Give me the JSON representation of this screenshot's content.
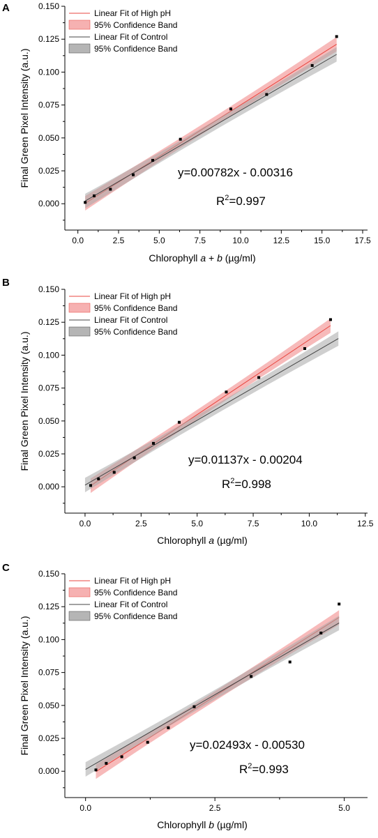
{
  "chart_data": [
    {
      "type": "scatter",
      "panel_label": "A",
      "xlabel": {
        "prefix": "Chlorophyll ",
        "italic1": "a",
        "mid": " + ",
        "italic2": "b",
        "suffix": " (µg/ml)"
      },
      "ylabel": "Final Green Pixel Intensity (a.u.)",
      "xlim": [
        -0.8,
        17.8
      ],
      "ylim": [
        -0.02,
        0.15
      ],
      "xticks": [
        "0.0",
        "2.5",
        "5.0",
        "7.5",
        "10.0",
        "12.5",
        "15.0",
        "17.5"
      ],
      "xtick_values": [
        0,
        2.5,
        5,
        7.5,
        10,
        12.5,
        15,
        17.5
      ],
      "yticks": [
        "0.000",
        "0.025",
        "0.050",
        "0.075",
        "0.100",
        "0.125",
        "0.150"
      ],
      "ytick_values": [
        0,
        0.025,
        0.05,
        0.075,
        0.1,
        0.125,
        0.15
      ],
      "points": [
        [
          0.45,
          0.001
        ],
        [
          1.0,
          0.006
        ],
        [
          2.0,
          0.011
        ],
        [
          3.4,
          0.022
        ],
        [
          4.6,
          0.033
        ],
        [
          6.3,
          0.049
        ],
        [
          9.4,
          0.072
        ],
        [
          11.6,
          0.083
        ],
        [
          14.4,
          0.105
        ],
        [
          15.9,
          0.127
        ]
      ],
      "series": [
        {
          "name": "Linear Fit of High pH",
          "slope": 0.00782,
          "intercept": -0.00316,
          "x_range": [
            0.45,
            15.9
          ],
          "color": "#e8463f",
          "band_color": "#f4a3a3"
        },
        {
          "name": "Linear Fit of Control",
          "slope": 0.00721,
          "intercept": -0.00118,
          "x_range": [
            0.45,
            15.9
          ],
          "color": "#444444",
          "band_color": "#a8a8a8"
        }
      ],
      "legend": [
        "Linear Fit of High pH",
        "95% Confidence Band",
        "Linear Fit of Control",
        "95% Confidence Band"
      ],
      "legend_position": "top-left",
      "equation": "y=0.00782x - 0.00316",
      "r2_prefix": "R",
      "r2_sup": "2",
      "r2_suffix": "=0.997",
      "grid": false
    },
    {
      "type": "scatter",
      "panel_label": "B",
      "xlabel": {
        "prefix": "Chlorophyll ",
        "italic1": "a",
        "mid": "",
        "italic2": "",
        "suffix": " (µg/ml)"
      },
      "ylabel": "Final Green Pixel Intensity (a.u.)",
      "xlim": [
        -0.9,
        12.6
      ],
      "ylim": [
        -0.02,
        0.15
      ],
      "xticks": [
        "0.0",
        "2.5",
        "5.0",
        "7.5",
        "10.0",
        "12.5"
      ],
      "xtick_values": [
        0,
        2.5,
        5,
        7.5,
        10,
        12.5
      ],
      "yticks": [
        "0.000",
        "0.025",
        "0.050",
        "0.075",
        "0.100",
        "0.125",
        "0.150"
      ],
      "ytick_values": [
        0,
        0.025,
        0.05,
        0.075,
        0.1,
        0.125,
        0.15
      ],
      "points": [
        [
          0.25,
          0.001
        ],
        [
          0.6,
          0.006
        ],
        [
          1.3,
          0.011
        ],
        [
          2.2,
          0.022
        ],
        [
          3.05,
          0.033
        ],
        [
          4.2,
          0.049
        ],
        [
          6.3,
          0.072
        ],
        [
          7.75,
          0.083
        ],
        [
          9.8,
          0.105
        ],
        [
          10.95,
          0.127
        ]
      ],
      "series": [
        {
          "name": "Linear Fit of High pH",
          "slope": 0.01137,
          "intercept": -0.00204,
          "x_range": [
            0.25,
            10.95
          ],
          "color": "#e8463f",
          "band_color": "#f4a3a3"
        },
        {
          "name": "Linear Fit of Control",
          "slope": 0.00985,
          "intercept": 0.0013,
          "x_range": [
            0.0,
            11.3
          ],
          "color": "#444444",
          "band_color": "#a8a8a8"
        }
      ],
      "legend": [
        "Linear Fit of High pH",
        "95% Confidence Band",
        "Linear Fit of Control",
        "95% Confidence Band"
      ],
      "legend_position": "top-left",
      "equation": "y=0.01137x - 0.00204",
      "r2_prefix": "R",
      "r2_sup": "2",
      "r2_suffix": "=0.998",
      "grid": false
    },
    {
      "type": "scatter",
      "panel_label": "C",
      "xlabel": {
        "prefix": "Chlorophyll ",
        "italic1": "b",
        "mid": "",
        "italic2": "",
        "suffix": " (µg/ml)"
      },
      "ylabel": "Final Green Pixel Intensity (a.u.)",
      "xlim": [
        -0.4,
        5.45
      ],
      "ylim": [
        -0.02,
        0.15
      ],
      "xticks": [
        "0.0",
        "2.5",
        "5.0"
      ],
      "xtick_values": [
        0,
        2.5,
        5
      ],
      "yticks": [
        "0.000",
        "0.025",
        "0.050",
        "0.075",
        "0.100",
        "0.125",
        "0.150"
      ],
      "ytick_values": [
        0,
        0.025,
        0.05,
        0.075,
        0.1,
        0.125,
        0.15
      ],
      "points": [
        [
          0.2,
          0.001
        ],
        [
          0.4,
          0.006
        ],
        [
          0.7,
          0.011
        ],
        [
          1.2,
          0.022
        ],
        [
          1.6,
          0.033
        ],
        [
          2.1,
          0.049
        ],
        [
          3.2,
          0.072
        ],
        [
          3.95,
          0.083
        ],
        [
          4.55,
          0.105
        ],
        [
          4.9,
          0.127
        ]
      ],
      "series": [
        {
          "name": "Linear Fit of High pH",
          "slope": 0.02493,
          "intercept": -0.0053,
          "x_range": [
            0.2,
            4.9
          ],
          "color": "#e8463f",
          "band_color": "#f4a3a3"
        },
        {
          "name": "Linear Fit of Control",
          "slope": 0.0227,
          "intercept": 0.0014,
          "x_range": [
            0.0,
            4.9
          ],
          "color": "#444444",
          "band_color": "#a8a8a8"
        }
      ],
      "legend": [
        "Linear Fit of High pH",
        "95% Confidence Band",
        "Linear Fit of Control",
        "95% Confidence Band"
      ],
      "legend_position": "top-left",
      "equation": "y=0.02493x - 0.00530",
      "r2_prefix": "R",
      "r2_sup": "2",
      "r2_suffix": "=0.993",
      "grid": false
    }
  ]
}
